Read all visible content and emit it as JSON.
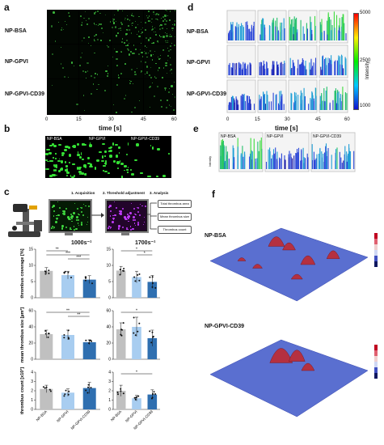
{
  "panel_a": {
    "letter": "a",
    "rows": [
      "NP-BSA",
      "NP-GPVI",
      "NP-GPVI-CD39"
    ],
    "time_ticks": [
      "0",
      "15",
      "30",
      "45",
      "60"
    ],
    "xlabel": "time [s]"
  },
  "panel_b": {
    "letter": "b",
    "tiles": [
      "NP-BSA",
      "NP-GPVI",
      "NP-GPVI-CD39"
    ]
  },
  "panel_c": {
    "letter": "c",
    "steps": [
      "1. Acquisition",
      "2. Threshold adjustment",
      "3. Analysis"
    ],
    "outputs": [
      "Total thrombus area",
      "Mean thrombus size",
      "Thrombus count"
    ],
    "shear_left": "1000s⁻¹",
    "shear_right": "1700s⁻¹",
    "groups": [
      "NP-BSA",
      "NP-GPVI",
      "NP-GPVI-CD39"
    ],
    "group_colors": [
      "#c0c0c0",
      "#a8cdf0",
      "#2f6fb0"
    ]
  },
  "panel_d": {
    "letter": "d",
    "rows": [
      "NP-BSA",
      "NP-GPVI",
      "NP-GPVI-CD39"
    ],
    "time_ticks": [
      "0",
      "15",
      "30",
      "45",
      "60"
    ],
    "xlabel": "time [s]",
    "colorbar_ticks": [
      "5000",
      "2500",
      "1000"
    ],
    "colorbar_label": "Intensity"
  },
  "panel_e": {
    "letter": "e",
    "tiles": [
      "NP-BSA",
      "NP-GPVI",
      "NP-GPVI-CD39"
    ],
    "ylabel": "Intensity"
  },
  "panel_f": {
    "letter": "f",
    "top_label": "NP-BSA",
    "bottom_label": "NP-GPVI-CD39"
  },
  "chart_data": [
    {
      "type": "bar",
      "id": "coverage-1000",
      "categories": [
        "NP-BSA",
        "NP-GPVI",
        "NP-GPVI-CD39"
      ],
      "values": [
        8.3,
        7.0,
        5.6
      ],
      "errors": [
        1.0,
        1.2,
        1.2
      ],
      "ylabel": "thrombus coverage [%]",
      "ylim": [
        0,
        15
      ],
      "yticks": [
        0,
        5,
        10,
        15
      ],
      "sig": [
        {
          "from": 0,
          "to": 1,
          "label": "**"
        },
        {
          "from": 0,
          "to": 2,
          "label": "***"
        },
        {
          "from": 1,
          "to": 2,
          "label": "***"
        }
      ]
    },
    {
      "type": "bar",
      "id": "coverage-1700",
      "categories": [
        "NP-BSA",
        "NP-GPVI",
        "NP-GPVI-CD39"
      ],
      "values": [
        8.4,
        6.4,
        4.9
      ],
      "errors": [
        1.3,
        1.8,
        2.0
      ],
      "ylabel": "",
      "ylim": [
        0,
        15
      ],
      "yticks": [
        0,
        5,
        10,
        15
      ],
      "sig": [
        {
          "from": 0,
          "to": 2,
          "label": "*"
        },
        {
          "from": 1,
          "to": 2,
          "label": "*"
        }
      ]
    },
    {
      "type": "bar",
      "id": "size-1000",
      "categories": [
        "NP-BSA",
        "NP-GPVI",
        "NP-GPVI-CD39"
      ],
      "values": [
        31,
        30,
        21
      ],
      "errors": [
        5,
        6,
        3
      ],
      "ylabel": "mean thrombus size [µm²]",
      "ylim": [
        0,
        60
      ],
      "yticks": [
        0,
        20,
        40,
        60
      ],
      "sig": [
        {
          "from": 0,
          "to": 2,
          "label": "**"
        },
        {
          "from": 1,
          "to": 2,
          "label": "**"
        }
      ]
    },
    {
      "type": "bar",
      "id": "size-1700",
      "categories": [
        "NP-BSA",
        "NP-GPVI",
        "NP-GPVI-CD39"
      ],
      "values": [
        37,
        40,
        26
      ],
      "errors": [
        8,
        12,
        10
      ],
      "ylabel": "",
      "ylim": [
        0,
        60
      ],
      "yticks": [
        0,
        20,
        40,
        60
      ],
      "sig": [
        {
          "from": 0,
          "to": 2,
          "label": "*"
        }
      ]
    },
    {
      "type": "bar",
      "id": "count-1000",
      "categories": [
        "NP-BSA",
        "NP-GPVI",
        "NP-GPVI-CD39"
      ],
      "values": [
        2.2,
        1.8,
        2.3
      ],
      "errors": [
        0.4,
        0.4,
        0.6
      ],
      "ylabel": "thrombus count [x10³]",
      "ylim": [
        0,
        4
      ],
      "yticks": [
        0,
        1,
        2,
        3,
        4
      ],
      "sig": []
    },
    {
      "type": "bar",
      "id": "count-1700",
      "categories": [
        "NP-BSA",
        "NP-GPVI",
        "NP-GPVI-CD39"
      ],
      "values": [
        2.0,
        1.2,
        1.6
      ],
      "errors": [
        0.6,
        0.3,
        0.5
      ],
      "ylabel": "",
      "ylim": [
        0,
        4
      ],
      "yticks": [
        0,
        1,
        2,
        3,
        4
      ],
      "sig": [
        {
          "from": 0,
          "to": 2,
          "label": "*"
        }
      ]
    }
  ]
}
